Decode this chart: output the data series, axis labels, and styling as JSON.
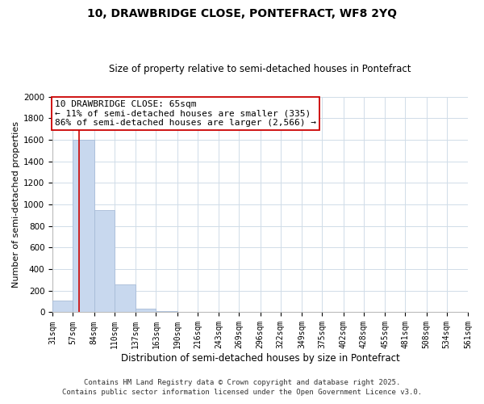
{
  "title": "10, DRAWBRIDGE CLOSE, PONTEFRACT, WF8 2YQ",
  "subtitle": "Size of property relative to semi-detached houses in Pontefract",
  "xlabel": "Distribution of semi-detached houses by size in Pontefract",
  "ylabel": "Number of semi-detached properties",
  "bin_edges": [
    31,
    57,
    84,
    110,
    137,
    163,
    190,
    216,
    243,
    269,
    296,
    322,
    349,
    375,
    402,
    428,
    455,
    481,
    508,
    534,
    561
  ],
  "bar_heights": [
    110,
    1600,
    950,
    255,
    35,
    10,
    0,
    0,
    0,
    0,
    0,
    0,
    0,
    0,
    0,
    0,
    0,
    0,
    0,
    0
  ],
  "bar_color": "#c8d8ee",
  "bar_edge_color": "#a8bcd8",
  "property_line_x": 65,
  "property_line_color": "#cc0000",
  "annotation_line1": "10 DRAWBRIDGE CLOSE: 65sqm",
  "annotation_line2": "← 11% of semi-detached houses are smaller (335)",
  "annotation_line3": "86% of semi-detached houses are larger (2,566) →",
  "annotation_box_color": "#ffffff",
  "annotation_box_edge_color": "#cc0000",
  "ylim": [
    0,
    2000
  ],
  "yticks": [
    0,
    200,
    400,
    600,
    800,
    1000,
    1200,
    1400,
    1600,
    1800,
    2000
  ],
  "tick_labels": [
    "31sqm",
    "57sqm",
    "84sqm",
    "110sqm",
    "137sqm",
    "163sqm",
    "190sqm",
    "216sqm",
    "243sqm",
    "269sqm",
    "296sqm",
    "322sqm",
    "349sqm",
    "375sqm",
    "402sqm",
    "428sqm",
    "455sqm",
    "481sqm",
    "508sqm",
    "534sqm",
    "561sqm"
  ],
  "grid_color": "#d0dce8",
  "background_color": "#ffffff",
  "footnote1": "Contains HM Land Registry data © Crown copyright and database right 2025.",
  "footnote2": "Contains public sector information licensed under the Open Government Licence v3.0.",
  "title_fontsize": 10,
  "subtitle_fontsize": 8.5,
  "axis_label_fontsize": 8.5,
  "ylabel_fontsize": 8,
  "tick_fontsize": 7,
  "annotation_fontsize": 8,
  "footnote_fontsize": 6.5
}
